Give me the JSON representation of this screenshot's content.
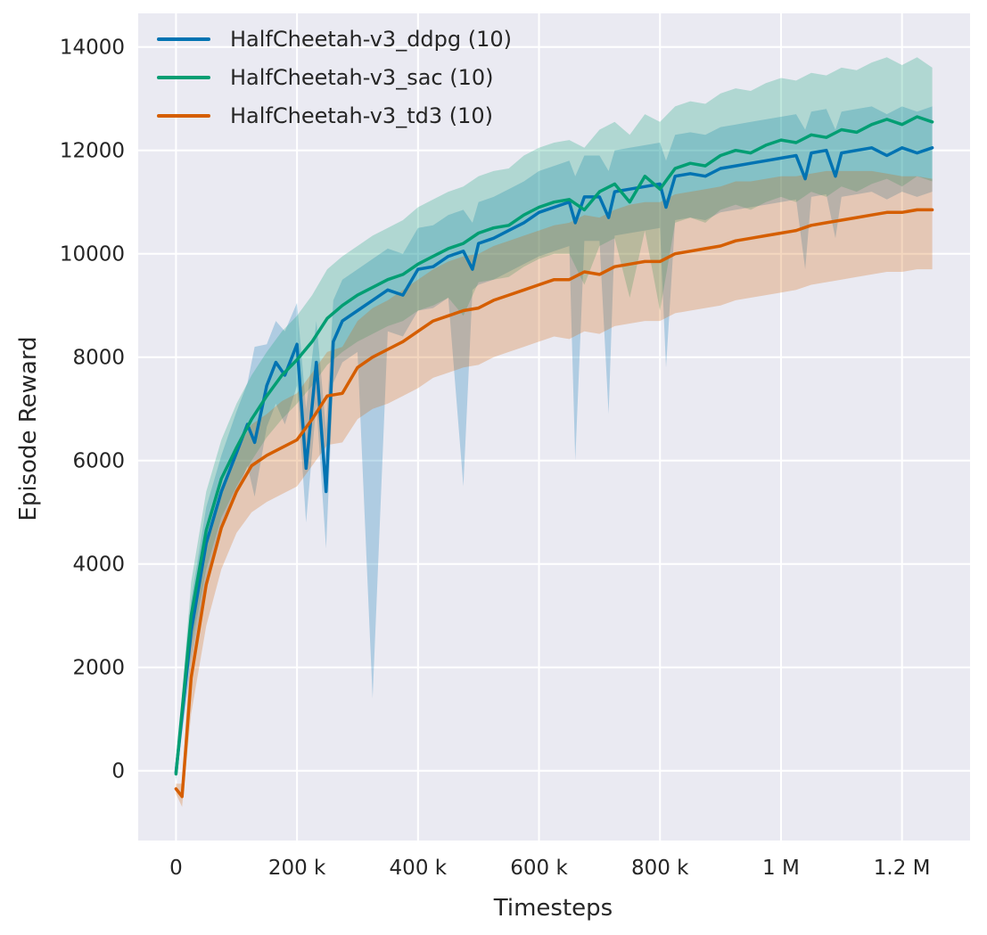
{
  "figure": {
    "xlabel": "Timesteps",
    "ylabel": "Episode Reward"
  },
  "chart_data": {
    "type": "line",
    "title": "",
    "xlabel": "Timesteps",
    "ylabel": "Episode Reward",
    "xlim": [
      -62500,
      1312500
    ],
    "ylim": [
      -1350,
      14650
    ],
    "grid": true,
    "legend_position": "upper left",
    "background": "#eaeaf2",
    "gridline_color": "#ffffff",
    "text_color": "#262626",
    "x_ticks": {
      "values": [
        0,
        200000,
        400000,
        600000,
        800000,
        1000000,
        1200000
      ],
      "labels": [
        "0",
        "200 k",
        "400 k",
        "600 k",
        "800 k",
        "1 M",
        "1.2 M"
      ]
    },
    "y_ticks": {
      "values": [
        0,
        2000,
        4000,
        6000,
        8000,
        10000,
        12000,
        14000
      ],
      "labels": [
        "0",
        "2000",
        "4000",
        "6000",
        "8000",
        "10000",
        "12000",
        "14000"
      ]
    },
    "series": [
      {
        "id": "ddpg",
        "name": "HalfCheetah-v3_ddpg (10)",
        "color": "#0173b2",
        "x": [
          0,
          25000,
          50000,
          75000,
          100000,
          118000,
          130000,
          150000,
          165000,
          180000,
          200000,
          215000,
          232000,
          248000,
          260000,
          275000,
          300000,
          325000,
          350000,
          375000,
          400000,
          425000,
          450000,
          475000,
          490000,
          500000,
          525000,
          550000,
          575000,
          600000,
          625000,
          650000,
          660000,
          675000,
          700000,
          715000,
          725000,
          750000,
          775000,
          800000,
          810000,
          825000,
          850000,
          875000,
          900000,
          925000,
          950000,
          975000,
          1000000,
          1025000,
          1040000,
          1050000,
          1075000,
          1090000,
          1100000,
          1125000,
          1150000,
          1175000,
          1200000,
          1225000,
          1250000
        ],
        "mean": [
          -30,
          2700,
          4400,
          5400,
          6150,
          6700,
          6350,
          7450,
          7900,
          7650,
          8250,
          5850,
          7900,
          5400,
          8300,
          8700,
          8900,
          9100,
          9300,
          9200,
          9700,
          9750,
          9950,
          10050,
          9700,
          10200,
          10300,
          10450,
          10600,
          10800,
          10900,
          11000,
          10600,
          11100,
          11100,
          10700,
          11200,
          11250,
          11300,
          11350,
          10900,
          11500,
          11550,
          11500,
          11650,
          11700,
          11750,
          11800,
          11850,
          11900,
          11450,
          11950,
          12000,
          11500,
          11950,
          12000,
          12050,
          11900,
          12050,
          11950,
          12050
        ],
        "lo": [
          -200,
          2100,
          3700,
          4700,
          5350,
          5900,
          5300,
          6650,
          7100,
          6700,
          7450,
          4800,
          7100,
          4300,
          7500,
          7900,
          8100,
          1400,
          8500,
          8400,
          8900,
          8950,
          9150,
          5500,
          9300,
          9400,
          9500,
          9650,
          9800,
          9950,
          10050,
          10150,
          6000,
          10250,
          10250,
          6900,
          10350,
          10400,
          10450,
          10500,
          7800,
          10650,
          10700,
          10650,
          10800,
          10850,
          10900,
          10950,
          11000,
          11050,
          9700,
          11100,
          11150,
          10300,
          11100,
          11150,
          11200,
          11050,
          11200,
          11100,
          11200
        ],
        "hi": [
          150,
          3300,
          5100,
          6100,
          6950,
          7500,
          8200,
          8250,
          8700,
          8500,
          9050,
          7000,
          8700,
          6600,
          9100,
          9500,
          9700,
          9900,
          10100,
          10000,
          10500,
          10550,
          10750,
          10850,
          10600,
          11000,
          11100,
          11250,
          11400,
          11600,
          11700,
          11800,
          11500,
          11900,
          11900,
          11600,
          12000,
          12050,
          12100,
          12150,
          11800,
          12300,
          12350,
          12300,
          12450,
          12500,
          12550,
          12600,
          12650,
          12700,
          12400,
          12750,
          12800,
          12400,
          12750,
          12800,
          12850,
          12700,
          12850,
          12750,
          12850
        ]
      },
      {
        "id": "sac",
        "name": "HalfCheetah-v3_sac (10)",
        "color": "#029e73",
        "x": [
          0,
          25000,
          50000,
          75000,
          100000,
          125000,
          150000,
          175000,
          200000,
          225000,
          250000,
          275000,
          300000,
          325000,
          350000,
          375000,
          400000,
          425000,
          450000,
          475000,
          500000,
          525000,
          550000,
          575000,
          600000,
          625000,
          650000,
          675000,
          700000,
          725000,
          750000,
          775000,
          800000,
          825000,
          850000,
          875000,
          900000,
          925000,
          950000,
          975000,
          1000000,
          1025000,
          1050000,
          1075000,
          1100000,
          1125000,
          1150000,
          1175000,
          1200000,
          1225000,
          1250000
        ],
        "mean": [
          -60,
          3000,
          4650,
          5650,
          6250,
          6800,
          7250,
          7650,
          7950,
          8300,
          8750,
          9000,
          9200,
          9350,
          9500,
          9600,
          9800,
          9950,
          10100,
          10200,
          10400,
          10500,
          10550,
          10750,
          10900,
          11000,
          11050,
          10850,
          11200,
          11350,
          11000,
          11500,
          11250,
          11650,
          11750,
          11700,
          11900,
          12000,
          11950,
          12100,
          12200,
          12150,
          12300,
          12250,
          12400,
          12350,
          12500,
          12600,
          12500,
          12650,
          12550
        ],
        "lo": [
          -150,
          2350,
          3900,
          4900,
          5500,
          6000,
          6450,
          6800,
          7100,
          7450,
          7850,
          8100,
          8300,
          8450,
          8600,
          8700,
          8900,
          9000,
          9150,
          8800,
          9450,
          9500,
          9550,
          9750,
          9900,
          10000,
          10000,
          9400,
          10150,
          10300,
          9150,
          10450,
          8900,
          10600,
          10700,
          10600,
          10850,
          10950,
          10850,
          11000,
          11100,
          11000,
          11200,
          11100,
          11300,
          11200,
          11350,
          11450,
          11300,
          11500,
          11400
        ],
        "hi": [
          30,
          3650,
          5400,
          6400,
          7100,
          7650,
          8100,
          8500,
          8800,
          9200,
          9700,
          9950,
          10150,
          10350,
          10500,
          10650,
          10900,
          11050,
          11200,
          11300,
          11500,
          11600,
          11650,
          11900,
          12050,
          12150,
          12200,
          12050,
          12400,
          12550,
          12300,
          12700,
          12550,
          12850,
          12950,
          12900,
          13100,
          13200,
          13150,
          13300,
          13400,
          13350,
          13500,
          13450,
          13600,
          13550,
          13700,
          13800,
          13650,
          13800,
          13600
        ]
      },
      {
        "id": "td3",
        "name": "HalfCheetah-v3_td3 (10)",
        "color": "#d55e00",
        "x": [
          0,
          10000,
          25000,
          50000,
          75000,
          100000,
          125000,
          150000,
          175000,
          200000,
          225000,
          250000,
          275000,
          300000,
          325000,
          350000,
          375000,
          400000,
          425000,
          450000,
          475000,
          500000,
          525000,
          550000,
          575000,
          600000,
          625000,
          650000,
          675000,
          700000,
          725000,
          750000,
          775000,
          800000,
          825000,
          850000,
          875000,
          900000,
          925000,
          950000,
          975000,
          1000000,
          1025000,
          1050000,
          1075000,
          1100000,
          1125000,
          1150000,
          1175000,
          1200000,
          1225000,
          1250000
        ],
        "mean": [
          -350,
          -500,
          1800,
          3600,
          4700,
          5400,
          5900,
          6100,
          6250,
          6400,
          6800,
          7250,
          7300,
          7800,
          8000,
          8150,
          8300,
          8500,
          8700,
          8800,
          8900,
          8950,
          9100,
          9200,
          9300,
          9400,
          9500,
          9500,
          9650,
          9600,
          9750,
          9800,
          9850,
          9850,
          10000,
          10050,
          10100,
          10150,
          10250,
          10300,
          10350,
          10400,
          10450,
          10550,
          10600,
          10650,
          10700,
          10750,
          10800,
          10800,
          10850,
          10850
        ],
        "lo": [
          -450,
          -700,
          1100,
          2800,
          3900,
          4600,
          5000,
          5200,
          5350,
          5500,
          5900,
          6300,
          6350,
          6800,
          7000,
          7100,
          7250,
          7400,
          7600,
          7700,
          7800,
          7850,
          8000,
          8100,
          8200,
          8300,
          8400,
          8350,
          8500,
          8450,
          8600,
          8650,
          8700,
          8700,
          8850,
          8900,
          8950,
          9000,
          9100,
          9150,
          9200,
          9250,
          9300,
          9400,
          9450,
          9500,
          9550,
          9600,
          9650,
          9650,
          9700,
          9700
        ],
        "hi": [
          -250,
          -250,
          2600,
          4400,
          5500,
          6200,
          6700,
          6900,
          7150,
          7300,
          7700,
          8100,
          8200,
          8700,
          8950,
          9100,
          9300,
          9500,
          9700,
          9850,
          9950,
          10000,
          10150,
          10250,
          10350,
          10450,
          10550,
          10600,
          10750,
          10700,
          10850,
          10950,
          11000,
          11000,
          11150,
          11200,
          11250,
          11300,
          11400,
          11400,
          11450,
          11500,
          11500,
          11550,
          11600,
          11600,
          11600,
          11600,
          11550,
          11500,
          11500,
          11450
        ]
      }
    ]
  }
}
